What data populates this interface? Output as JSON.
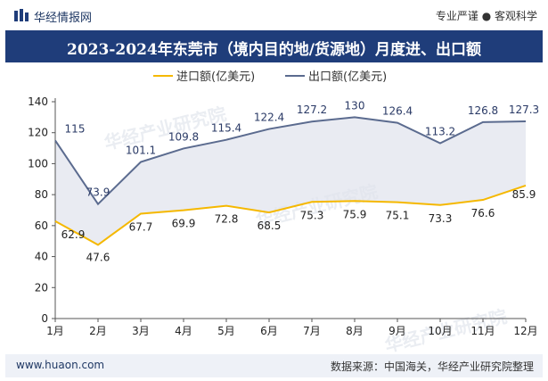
{
  "header": {
    "brand": "华经情报网",
    "slogan": "专业严谨 ● 客观科学"
  },
  "title": "2023-2024年东莞市（境内目的地/货源地）月度进、出口额",
  "footer": {
    "url": "www.huaon.com",
    "source": "数据来源：中国海关，华经产业研究院整理"
  },
  "watermark": {
    "text": "华经产业研究院",
    "url": "www.huaon.com"
  },
  "colors": {
    "title_bg": "#1f3d7a",
    "import_line": "#f5b800",
    "export_line": "#5b6b8f",
    "area_fill": "#dfe3ec"
  },
  "chart_data": {
    "type": "line",
    "categories": [
      "1月",
      "2月",
      "3月",
      "4月",
      "5月",
      "6月",
      "7月",
      "8月",
      "9月",
      "10月",
      "11月",
      "12月"
    ],
    "series": [
      {
        "name": "进口额(亿美元)",
        "values": [
          62.9,
          47.6,
          67.7,
          69.9,
          72.8,
          68.5,
          75.3,
          75.9,
          75.1,
          73.3,
          76.6,
          85.9
        ]
      },
      {
        "name": "出口额(亿美元)",
        "values": [
          115,
          73.9,
          101.1,
          109.8,
          115.4,
          122.4,
          127.2,
          130,
          126.4,
          113.2,
          126.8,
          127.3
        ]
      }
    ],
    "yticks": [
      0,
      20,
      40,
      60,
      80,
      100,
      120,
      140
    ],
    "ylim": [
      0,
      140
    ],
    "legend_position": "top-center",
    "grid": false
  }
}
